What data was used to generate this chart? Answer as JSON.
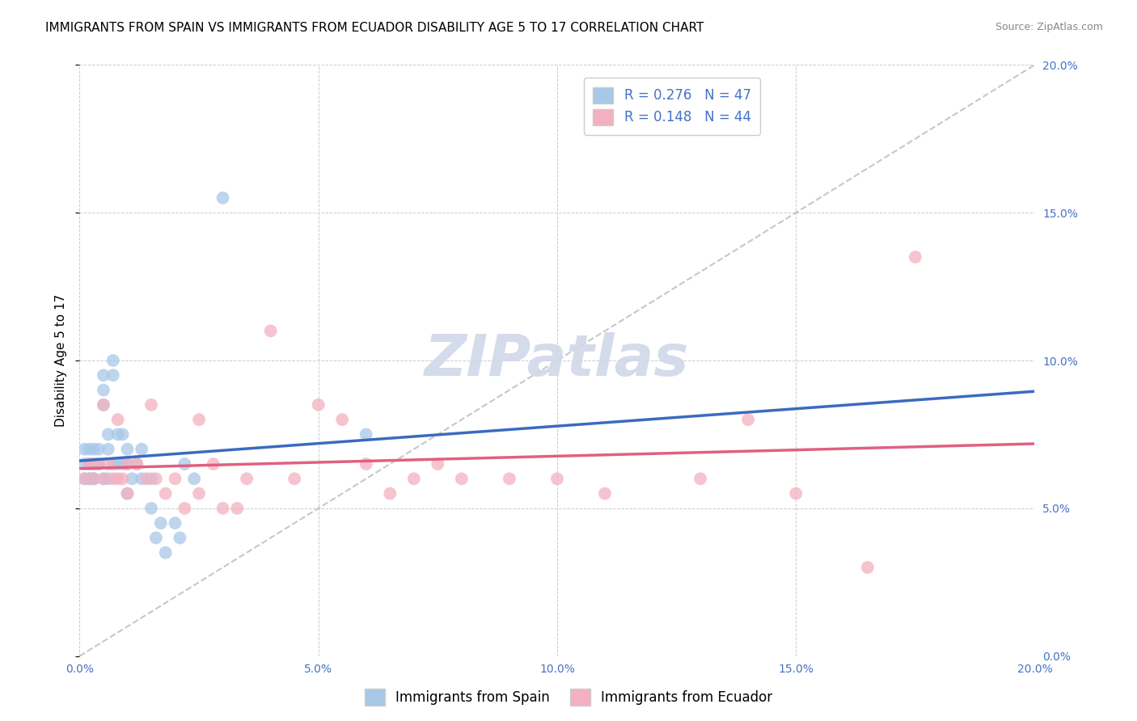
{
  "title": "IMMIGRANTS FROM SPAIN VS IMMIGRANTS FROM ECUADOR DISABILITY AGE 5 TO 17 CORRELATION CHART",
  "source": "Source: ZipAtlas.com",
  "ylabel": "Disability Age 5 to 17",
  "legend_label1": "Immigrants from Spain",
  "legend_label2": "Immigrants from Ecuador",
  "R1": 0.276,
  "N1": 47,
  "R2": 0.148,
  "N2": 44,
  "color1": "#a8c8e8",
  "color1_line": "#3a6bbf",
  "color2": "#f4b0c0",
  "color2_line": "#e06080",
  "xmin": 0.0,
  "xmax": 0.2,
  "ymin": 0.0,
  "ymax": 0.2,
  "xticks": [
    0.0,
    0.05,
    0.1,
    0.15,
    0.2
  ],
  "yticks": [
    0.0,
    0.05,
    0.1,
    0.15,
    0.2
  ],
  "xtick_labels": [
    "0.0%",
    "5.0%",
    "10.0%",
    "15.0%",
    "20.0%"
  ],
  "ytick_labels": [
    "0.0%",
    "5.0%",
    "10.0%",
    "15.0%",
    "20.0%"
  ],
  "spain_x": [
    0.001,
    0.001,
    0.001,
    0.002,
    0.002,
    0.002,
    0.002,
    0.003,
    0.003,
    0.003,
    0.003,
    0.003,
    0.004,
    0.004,
    0.004,
    0.005,
    0.005,
    0.005,
    0.005,
    0.006,
    0.006,
    0.006,
    0.007,
    0.007,
    0.007,
    0.008,
    0.008,
    0.009,
    0.009,
    0.01,
    0.01,
    0.01,
    0.011,
    0.012,
    0.013,
    0.013,
    0.015,
    0.015,
    0.016,
    0.017,
    0.018,
    0.02,
    0.021,
    0.022,
    0.024,
    0.03,
    0.06
  ],
  "spain_y": [
    0.06,
    0.065,
    0.07,
    0.06,
    0.065,
    0.07,
    0.06,
    0.065,
    0.06,
    0.065,
    0.07,
    0.06,
    0.065,
    0.07,
    0.065,
    0.095,
    0.09,
    0.085,
    0.06,
    0.075,
    0.07,
    0.06,
    0.1,
    0.095,
    0.065,
    0.075,
    0.065,
    0.075,
    0.065,
    0.07,
    0.065,
    0.055,
    0.06,
    0.065,
    0.07,
    0.06,
    0.06,
    0.05,
    0.04,
    0.045,
    0.035,
    0.045,
    0.04,
    0.065,
    0.06,
    0.155,
    0.075
  ],
  "ecuador_x": [
    0.001,
    0.002,
    0.003,
    0.003,
    0.004,
    0.005,
    0.005,
    0.006,
    0.007,
    0.008,
    0.008,
    0.009,
    0.01,
    0.01,
    0.012,
    0.014,
    0.015,
    0.016,
    0.018,
    0.02,
    0.022,
    0.025,
    0.025,
    0.028,
    0.03,
    0.033,
    0.035,
    0.04,
    0.045,
    0.05,
    0.055,
    0.06,
    0.065,
    0.07,
    0.075,
    0.08,
    0.09,
    0.1,
    0.11,
    0.13,
    0.14,
    0.15,
    0.165,
    0.175
  ],
  "ecuador_y": [
    0.06,
    0.065,
    0.06,
    0.065,
    0.065,
    0.085,
    0.06,
    0.065,
    0.06,
    0.08,
    0.06,
    0.06,
    0.065,
    0.055,
    0.065,
    0.06,
    0.085,
    0.06,
    0.055,
    0.06,
    0.05,
    0.08,
    0.055,
    0.065,
    0.05,
    0.05,
    0.06,
    0.11,
    0.06,
    0.085,
    0.08,
    0.065,
    0.055,
    0.06,
    0.065,
    0.06,
    0.06,
    0.06,
    0.055,
    0.06,
    0.08,
    0.055,
    0.03,
    0.135
  ],
  "title_fontsize": 11,
  "axis_label_fontsize": 11,
  "tick_fontsize": 10,
  "legend_fontsize": 12,
  "right_tick_color": "#4472c4",
  "watermark_text": "ZIPatlas",
  "watermark_color": "#d0d8e8",
  "background_color": "#ffffff"
}
